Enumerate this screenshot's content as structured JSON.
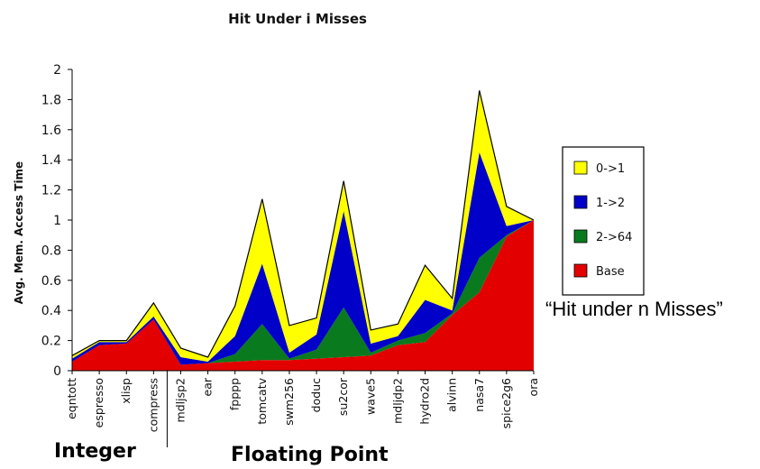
{
  "chart_data": {
    "type": "area",
    "stacked": true,
    "title": "Hit Under i Misses",
    "ylabel": "Avg. Mem. Access Time",
    "xlabel": "",
    "ylim": [
      0,
      2
    ],
    "yticks": [
      "0",
      "0.2",
      "0.4",
      "0.6",
      "0.8",
      "1",
      "1.2",
      "1.4",
      "1.6",
      "1.8",
      "2"
    ],
    "categories": [
      "eqntott",
      "espresso",
      "xlisp",
      "compress",
      "mdljsp2",
      "ear",
      "fpppp",
      "tomcatv",
      "swm256",
      "doduc",
      "su2cor",
      "wave5",
      "mdljdp2",
      "hydro2d",
      "alvinn",
      "nasa7",
      "spice2g6",
      "ora"
    ],
    "series": [
      {
        "name": "Base",
        "color": "#e30000",
        "values": [
          0.06,
          0.17,
          0.18,
          0.34,
          0.04,
          0.05,
          0.06,
          0.07,
          0.07,
          0.08,
          0.09,
          0.1,
          0.17,
          0.19,
          0.37,
          0.52,
          0.89,
          1.0
        ]
      },
      {
        "name": "2->64",
        "color": "#0a7a1e",
        "values": [
          0.0,
          0.0,
          0.0,
          0.0,
          0.0,
          0.0,
          0.05,
          0.24,
          0.01,
          0.06,
          0.33,
          0.02,
          0.03,
          0.06,
          0.01,
          0.23,
          0.01,
          0.0
        ]
      },
      {
        "name": "1->2",
        "color": "#0000c8",
        "values": [
          0.02,
          0.02,
          0.01,
          0.02,
          0.05,
          0.01,
          0.12,
          0.4,
          0.04,
          0.1,
          0.64,
          0.06,
          0.03,
          0.22,
          0.02,
          0.7,
          0.06,
          0.0
        ]
      },
      {
        "name": "0->1",
        "color": "#ffff00",
        "values": [
          0.02,
          0.01,
          0.01,
          0.09,
          0.06,
          0.03,
          0.2,
          0.43,
          0.18,
          0.11,
          0.2,
          0.09,
          0.08,
          0.23,
          0.08,
          0.41,
          0.13,
          0.0
        ]
      }
    ],
    "legend": {
      "placement": "right",
      "entries": [
        {
          "label": "0->1",
          "color": "#ffff00"
        },
        {
          "label": "1->2",
          "color": "#0000c8"
        },
        {
          "label": "2->64",
          "color": "#0a7a1e"
        },
        {
          "label": "Base",
          "color": "#e30000"
        }
      ]
    },
    "groups": [
      {
        "label": "Integer",
        "span": [
          0,
          3
        ]
      },
      {
        "label": "Floating Point",
        "span": [
          4,
          17
        ]
      }
    ],
    "annotation": "“Hit under n Misses”",
    "grid": false
  }
}
